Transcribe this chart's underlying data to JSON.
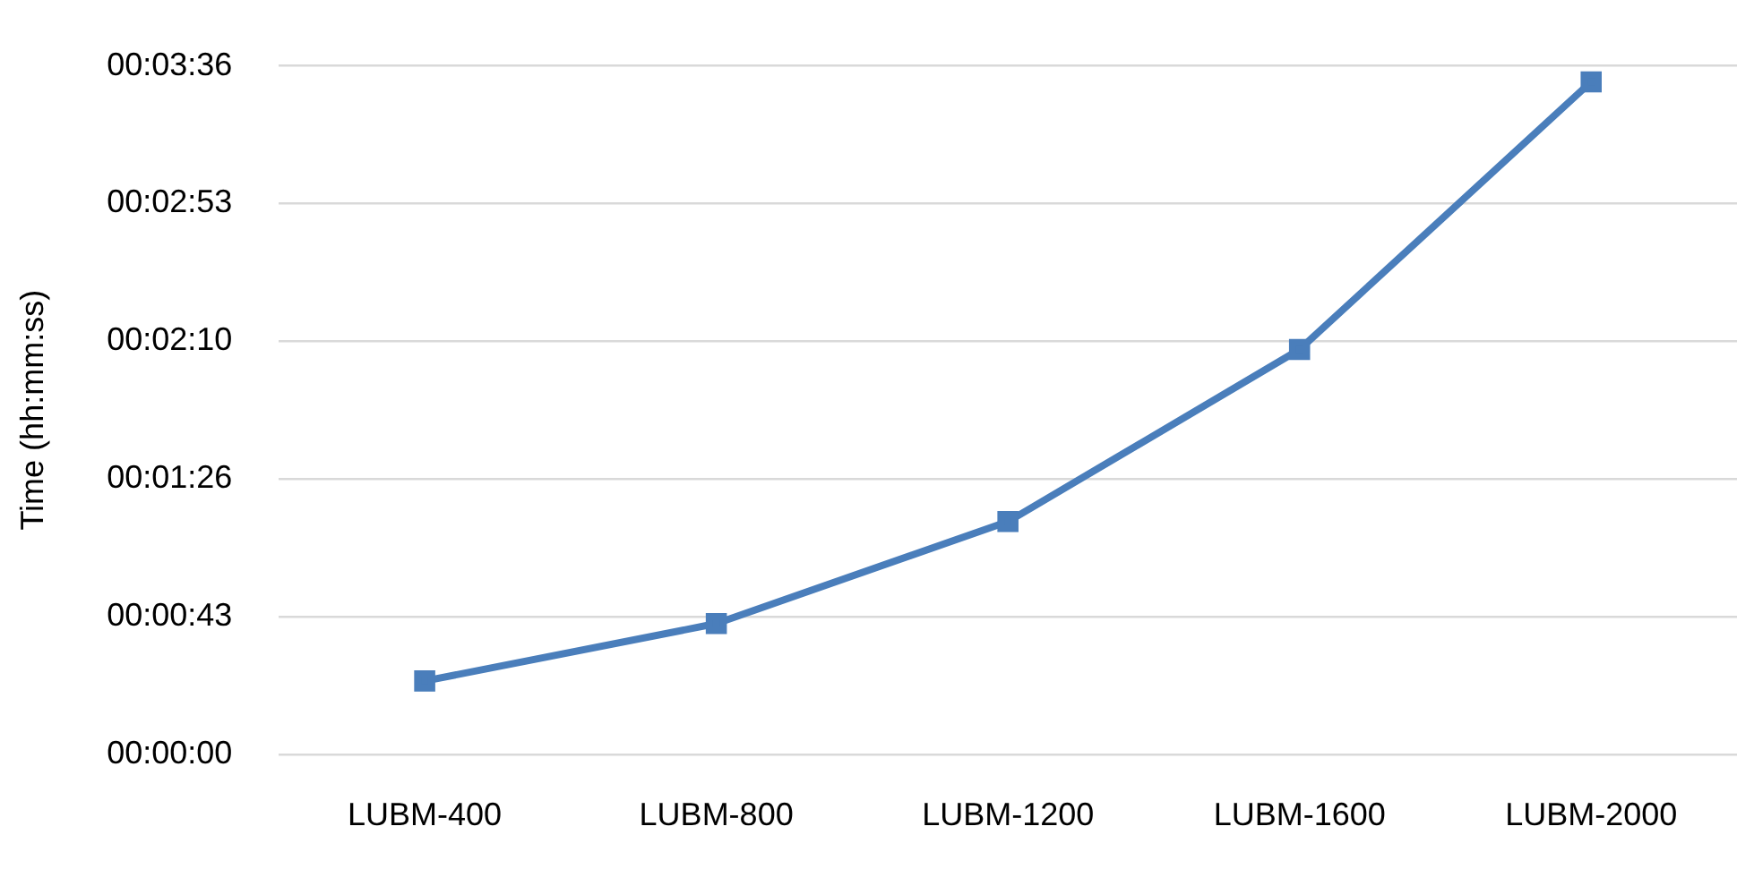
{
  "chart_data": {
    "type": "line",
    "ylabel": "Time (hh:mm:ss)",
    "categories": [
      "LUBM-400",
      "LUBM-800",
      "LUBM-1200",
      "LUBM-1600",
      "LUBM-2000"
    ],
    "series": [
      {
        "color": "#4a7ebb",
        "values": [
          23,
          41,
          73,
          127,
          211
        ]
      }
    ],
    "ylim": [
      0,
      216
    ],
    "yticks": [
      {
        "value": 0,
        "label": "00:00:00"
      },
      {
        "value": 43.2,
        "label": "00:00:43"
      },
      {
        "value": 86.4,
        "label": "00:01:26"
      },
      {
        "value": 129.6,
        "label": "00:02:10"
      },
      {
        "value": 172.8,
        "label": "00:02:53"
      },
      {
        "value": 216,
        "label": "00:03:36"
      }
    ],
    "grid": "y",
    "legend": false,
    "marker": "square",
    "line_style": "solid"
  }
}
